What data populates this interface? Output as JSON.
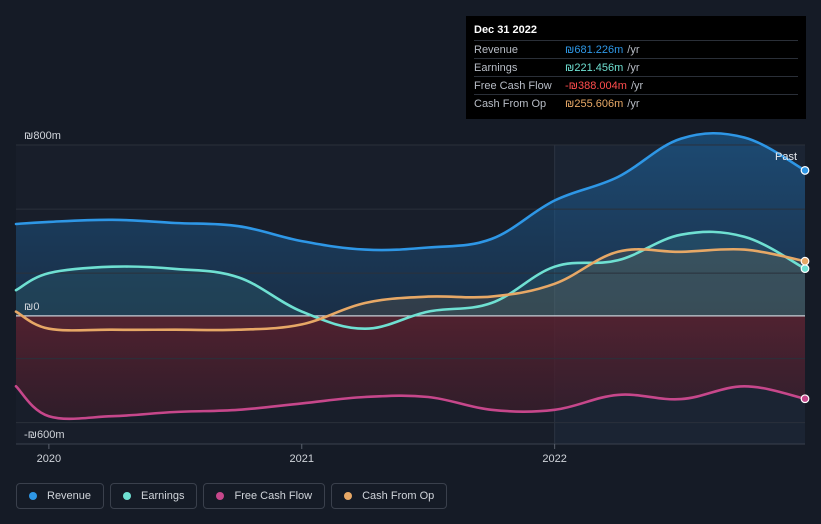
{
  "tooltip": {
    "date": "Dec 31 2022",
    "rows": [
      {
        "label": "Revenue",
        "value": "₪681.226m",
        "unit": "/yr",
        "color": "#2e97e6"
      },
      {
        "label": "Earnings",
        "value": "₪221.456m",
        "unit": "/yr",
        "color": "#6fe0d2"
      },
      {
        "label": "Free Cash Flow",
        "value": "-₪388.004m",
        "unit": "/yr",
        "color": "#ff4d4d"
      },
      {
        "label": "Cash From Op",
        "value": "₪255.606m",
        "unit": "/yr",
        "color": "#e7a866"
      }
    ]
  },
  "past_label": "Past",
  "legend": [
    {
      "label": "Revenue",
      "color": "#2e97e6"
    },
    {
      "label": "Earnings",
      "color": "#6fe0d2"
    },
    {
      "label": "Free Cash Flow",
      "color": "#c6478b"
    },
    {
      "label": "Cash From Op",
      "color": "#e7a866"
    }
  ],
  "chart_data": {
    "type": "area",
    "y_tick_labels": [
      "₪800m",
      "₪0",
      "-₪600m"
    ],
    "y_ticks": [
      800,
      0,
      -600
    ],
    "x_tick_labels": [
      "2020",
      "2021",
      "2022"
    ],
    "x_ticks": [
      2020.0,
      2021.0,
      2022.0
    ],
    "xlim": [
      2019.87,
      2022.99
    ],
    "ylim": [
      -600,
      800
    ],
    "highlight_start": 2022.0,
    "series": [
      {
        "name": "Revenue",
        "color": "#2e97e6",
        "x": [
          2019.87,
          2020.0,
          2020.25,
          2020.5,
          2020.75,
          2021.0,
          2021.25,
          2021.5,
          2021.75,
          2022.0,
          2022.25,
          2022.5,
          2022.75,
          2022.99
        ],
        "values": [
          430,
          440,
          450,
          435,
          420,
          350,
          310,
          320,
          360,
          540,
          650,
          830,
          835,
          681
        ]
      },
      {
        "name": "Earnings",
        "color": "#6fe0d2",
        "x": [
          2019.87,
          2020.0,
          2020.25,
          2020.5,
          2020.75,
          2021.0,
          2021.25,
          2021.5,
          2021.75,
          2022.0,
          2022.25,
          2022.5,
          2022.75,
          2022.99
        ],
        "values": [
          120,
          200,
          230,
          220,
          180,
          20,
          -60,
          20,
          60,
          230,
          260,
          380,
          370,
          221
        ]
      },
      {
        "name": "Free Cash Flow",
        "color": "#c6478b",
        "x": [
          2019.87,
          2020.0,
          2020.25,
          2020.5,
          2020.75,
          2021.0,
          2021.25,
          2021.5,
          2021.75,
          2022.0,
          2022.25,
          2022.5,
          2022.75,
          2022.99
        ],
        "values": [
          -330,
          -470,
          -470,
          -450,
          -440,
          -410,
          -380,
          -380,
          -440,
          -440,
          -370,
          -390,
          -330,
          -388
        ]
      },
      {
        "name": "Cash From Op",
        "color": "#e7a866",
        "x": [
          2019.87,
          2020.0,
          2020.25,
          2020.5,
          2020.75,
          2021.0,
          2021.25,
          2021.5,
          2021.75,
          2022.0,
          2022.25,
          2022.5,
          2022.75,
          2022.99
        ],
        "values": [
          20,
          -60,
          -65,
          -65,
          -65,
          -40,
          60,
          90,
          90,
          150,
          300,
          300,
          310,
          256
        ]
      }
    ]
  }
}
